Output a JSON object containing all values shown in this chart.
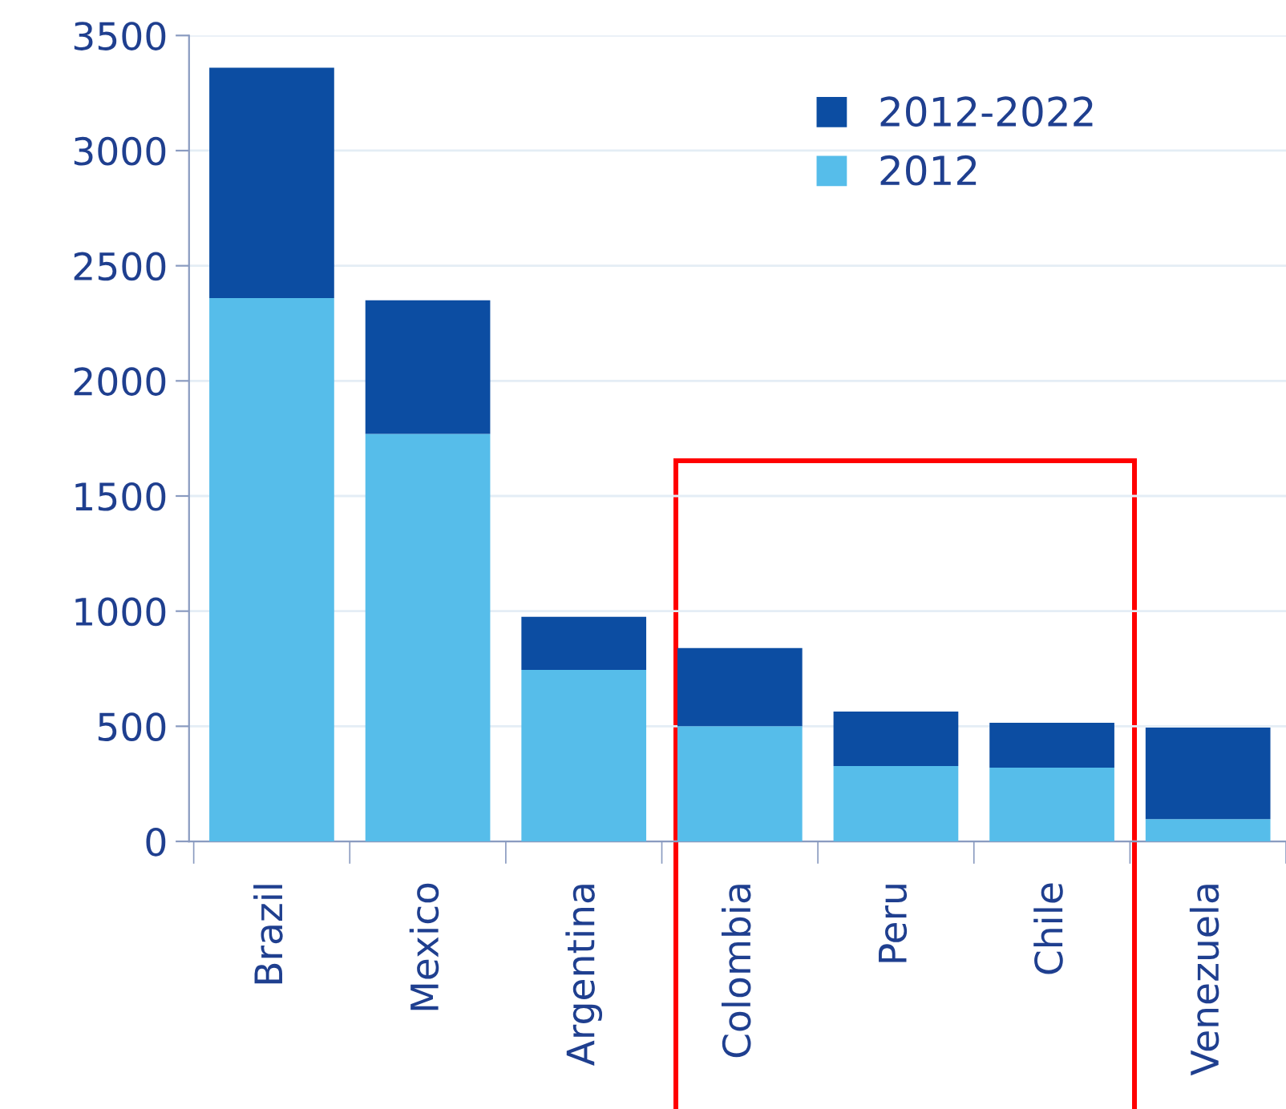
{
  "chart_data": {
    "type": "bar",
    "stacked": true,
    "categories": [
      "Brazil",
      "Mexico",
      "Argentina",
      "Colombia",
      "Peru",
      "Chile",
      "Venezuela"
    ],
    "series": [
      {
        "name": "2012",
        "color": "#56bdea",
        "values": [
          2360,
          1770,
          745,
          500,
          327,
          320,
          97
        ]
      },
      {
        "name": "2012-2022",
        "color": "#0c4da2",
        "values": [
          1000,
          580,
          230,
          340,
          237,
          195,
          397
        ]
      }
    ],
    "ylim": [
      0,
      3500
    ],
    "yticks": [
      0,
      500,
      1000,
      1500,
      2000,
      2500,
      3000,
      3500
    ],
    "grid": "y",
    "legend": "top right"
  }
}
